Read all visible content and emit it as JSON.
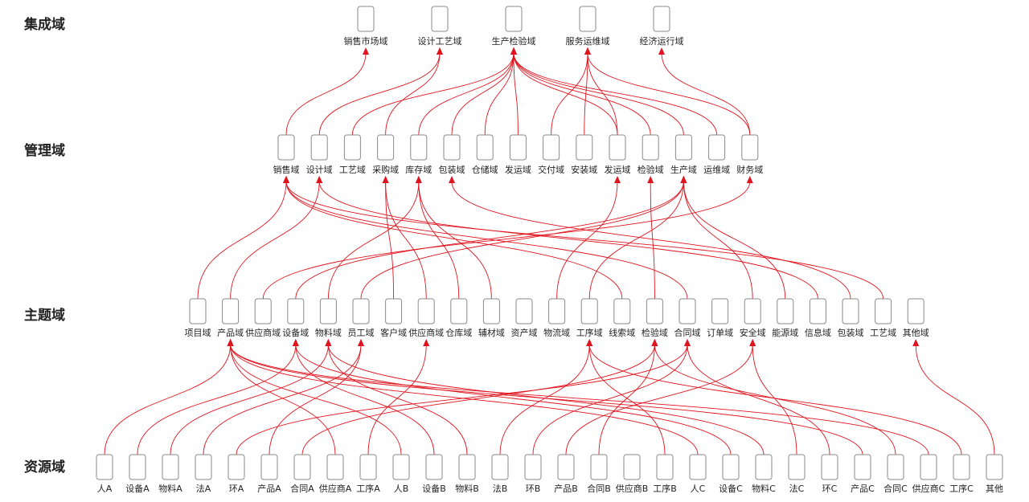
{
  "colors": {
    "edge": "#e0141e",
    "box_stroke": "#8a8a8a",
    "text": "#222222"
  },
  "layers": [
    {
      "id": "integration",
      "title": "集成域",
      "nodes": [
        "销售市场域",
        "设计工艺域",
        "生产检验域",
        "服务运维域",
        "经济运行域"
      ]
    },
    {
      "id": "management",
      "title": "管理域",
      "nodes": [
        "销售域",
        "设计域",
        "工艺域",
        "采购域",
        "库存域",
        "包装域",
        "仓储域",
        "发运域",
        "交付域",
        "安装域",
        "发运域",
        "检验域",
        "生产域",
        "运维域",
        "财务域"
      ]
    },
    {
      "id": "topic",
      "title": "主题域",
      "nodes": [
        "项目域",
        "产品域",
        "供应商域",
        "设备域",
        "物料域",
        "员工域",
        "客户域",
        "供应商域",
        "仓库域",
        "辅材域",
        "资产域",
        "物流域",
        "工序域",
        "线索域",
        "检验域",
        "合同域",
        "订单域",
        "安全域",
        "能源域",
        "信息域",
        "包装域",
        "工艺域",
        "其他域"
      ]
    },
    {
      "id": "resource",
      "title": "资源域",
      "nodes": [
        "人A",
        "设备A",
        "物料A",
        "法A",
        "环A",
        "产品A",
        "合同A",
        "供应商A",
        "工序A",
        "人B",
        "设备B",
        "物料B",
        "法B",
        "环B",
        "产品B",
        "合同B",
        "供应商B",
        "工序B",
        "人C",
        "设备C",
        "物料C",
        "法C",
        "环C",
        "产品C",
        "合同C",
        "供应商C",
        "工序C",
        "其他"
      ]
    }
  ],
  "links": [
    {
      "from": [
        1,
        0
      ],
      "to": [
        0,
        0
      ]
    },
    {
      "from": [
        1,
        1
      ],
      "to": [
        0,
        1
      ]
    },
    {
      "from": [
        1,
        3
      ],
      "to": [
        0,
        1
      ]
    },
    {
      "from": [
        1,
        2
      ],
      "to": [
        0,
        2
      ]
    },
    {
      "from": [
        1,
        4
      ],
      "to": [
        0,
        2
      ]
    },
    {
      "from": [
        1,
        5
      ],
      "to": [
        0,
        2
      ]
    },
    {
      "from": [
        1,
        6
      ],
      "to": [
        0,
        2
      ]
    },
    {
      "from": [
        1,
        7
      ],
      "to": [
        0,
        2
      ]
    },
    {
      "from": [
        1,
        10
      ],
      "to": [
        0,
        2
      ]
    },
    {
      "from": [
        1,
        11
      ],
      "to": [
        0,
        2
      ]
    },
    {
      "from": [
        1,
        12
      ],
      "to": [
        0,
        2
      ]
    },
    {
      "from": [
        1,
        13
      ],
      "to": [
        0,
        2
      ]
    },
    {
      "from": [
        1,
        8
      ],
      "to": [
        0,
        3
      ]
    },
    {
      "from": [
        1,
        9
      ],
      "to": [
        0,
        3
      ]
    },
    {
      "from": [
        1,
        10
      ],
      "to": [
        0,
        3
      ]
    },
    {
      "from": [
        1,
        14
      ],
      "to": [
        0,
        3
      ]
    },
    {
      "from": [
        1,
        14
      ],
      "to": [
        0,
        4
      ]
    },
    {
      "from": [
        2,
        0
      ],
      "to": [
        1,
        0
      ]
    },
    {
      "from": [
        2,
        13
      ],
      "to": [
        1,
        0
      ]
    },
    {
      "from": [
        2,
        15
      ],
      "to": [
        1,
        0
      ]
    },
    {
      "from": [
        2,
        21
      ],
      "to": [
        1,
        0
      ]
    },
    {
      "from": [
        2,
        1
      ],
      "to": [
        1,
        1
      ]
    },
    {
      "from": [
        2,
        19
      ],
      "to": [
        1,
        1
      ]
    },
    {
      "from": [
        2,
        6
      ],
      "to": [
        1,
        3
      ]
    },
    {
      "from": [
        2,
        7
      ],
      "to": [
        1,
        3
      ]
    },
    {
      "from": [
        2,
        4
      ],
      "to": [
        1,
        4
      ]
    },
    {
      "from": [
        2,
        8
      ],
      "to": [
        1,
        4
      ]
    },
    {
      "from": [
        2,
        9
      ],
      "to": [
        1,
        4
      ]
    },
    {
      "from": [
        2,
        20
      ],
      "to": [
        1,
        5
      ]
    },
    {
      "from": [
        2,
        11
      ],
      "to": [
        1,
        10
      ]
    },
    {
      "from": [
        2,
        14
      ],
      "to": [
        1,
        11
      ]
    },
    {
      "from": [
        2,
        3
      ],
      "to": [
        1,
        12
      ]
    },
    {
      "from": [
        2,
        5
      ],
      "to": [
        1,
        12
      ]
    },
    {
      "from": [
        2,
        12
      ],
      "to": [
        1,
        12
      ]
    },
    {
      "from": [
        2,
        17
      ],
      "to": [
        1,
        12
      ]
    },
    {
      "from": [
        2,
        18
      ],
      "to": [
        1,
        12
      ]
    },
    {
      "from": [
        2,
        2
      ],
      "to": [
        1,
        14
      ]
    },
    {
      "from": [
        3,
        0
      ],
      "to": [
        2,
        1
      ]
    },
    {
      "from": [
        3,
        7
      ],
      "to": [
        2,
        1
      ]
    },
    {
      "from": [
        3,
        9
      ],
      "to": [
        2,
        1
      ]
    },
    {
      "from": [
        3,
        18
      ],
      "to": [
        2,
        1
      ]
    },
    {
      "from": [
        3,
        23
      ],
      "to": [
        2,
        1
      ]
    },
    {
      "from": [
        3,
        25
      ],
      "to": [
        2,
        1
      ]
    },
    {
      "from": [
        3,
        1
      ],
      "to": [
        2,
        3
      ]
    },
    {
      "from": [
        3,
        10
      ],
      "to": [
        2,
        3
      ]
    },
    {
      "from": [
        3,
        19
      ],
      "to": [
        2,
        3
      ]
    },
    {
      "from": [
        3,
        2
      ],
      "to": [
        2,
        4
      ]
    },
    {
      "from": [
        3,
        11
      ],
      "to": [
        2,
        4
      ]
    },
    {
      "from": [
        3,
        20
      ],
      "to": [
        2,
        4
      ]
    },
    {
      "from": [
        3,
        3
      ],
      "to": [
        2,
        5
      ]
    },
    {
      "from": [
        3,
        5
      ],
      "to": [
        2,
        5
      ]
    },
    {
      "from": [
        3,
        8
      ],
      "to": [
        2,
        7
      ]
    },
    {
      "from": [
        3,
        17
      ],
      "to": [
        2,
        12
      ]
    },
    {
      "from": [
        3,
        12
      ],
      "to": [
        2,
        12
      ]
    },
    {
      "from": [
        3,
        26
      ],
      "to": [
        2,
        12
      ]
    },
    {
      "from": [
        3,
        6
      ],
      "to": [
        2,
        14
      ]
    },
    {
      "from": [
        3,
        15
      ],
      "to": [
        2,
        14
      ]
    },
    {
      "from": [
        3,
        24
      ],
      "to": [
        2,
        14
      ]
    },
    {
      "from": [
        3,
        4
      ],
      "to": [
        2,
        15
      ]
    },
    {
      "from": [
        3,
        13
      ],
      "to": [
        2,
        15
      ]
    },
    {
      "from": [
        3,
        22
      ],
      "to": [
        2,
        15
      ]
    },
    {
      "from": [
        3,
        14
      ],
      "to": [
        2,
        17
      ]
    },
    {
      "from": [
        3,
        21
      ],
      "to": [
        2,
        17
      ]
    },
    {
      "from": [
        3,
        27
      ],
      "to": [
        2,
        22
      ]
    }
  ]
}
